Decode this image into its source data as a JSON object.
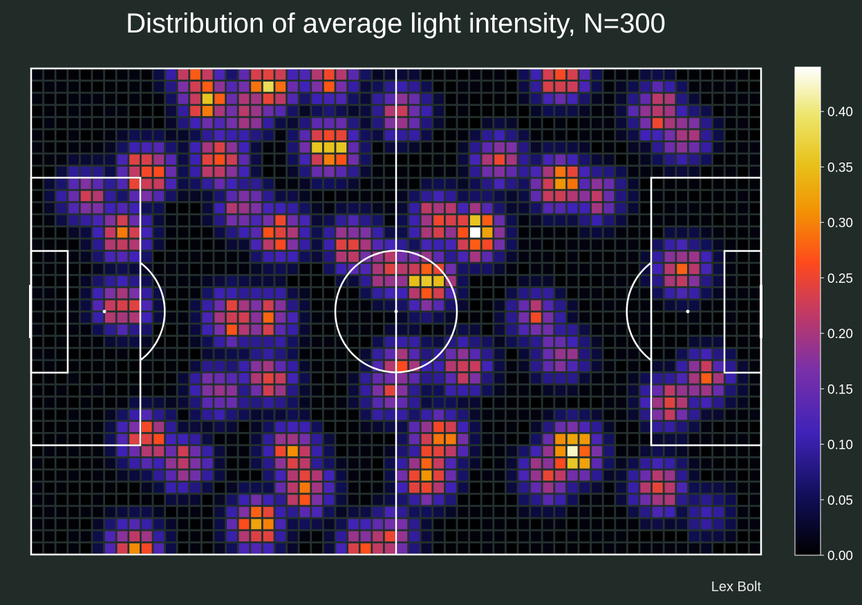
{
  "chart_data": {
    "type": "heatmap",
    "title": "Distribution of average light intensity, N=300",
    "credit": "Lex Bolt",
    "grid": {
      "columns": 60,
      "rows": 40
    },
    "colorbar": {
      "colormap": "gnuplot2",
      "vmin": 0.0,
      "vmax": 0.44,
      "ticks": [
        "0.00",
        "0.05",
        "0.10",
        "0.15",
        "0.20",
        "0.25",
        "0.30",
        "0.35",
        "0.40"
      ]
    },
    "hotspots": [
      {
        "col": 13,
        "row": 0,
        "v": 0.28
      },
      {
        "col": 14,
        "row": 2,
        "v": 0.34
      },
      {
        "col": 17,
        "row": 3,
        "v": 0.26
      },
      {
        "col": 19,
        "row": 1,
        "v": 0.36
      },
      {
        "col": 24,
        "row": 0,
        "v": 0.32
      },
      {
        "col": 24,
        "row": 6,
        "v": 0.4
      },
      {
        "col": 30,
        "row": 3,
        "v": 0.25
      },
      {
        "col": 43,
        "row": 0,
        "v": 0.32
      },
      {
        "col": 43,
        "row": 9,
        "v": 0.36
      },
      {
        "col": 46,
        "row": 10,
        "v": 0.22
      },
      {
        "col": 51,
        "row": 3,
        "v": 0.28
      },
      {
        "col": 53,
        "row": 5,
        "v": 0.25
      },
      {
        "col": 9,
        "row": 8,
        "v": 0.34
      },
      {
        "col": 4,
        "row": 10,
        "v": 0.24
      },
      {
        "col": 7,
        "row": 13,
        "v": 0.3
      },
      {
        "col": 15,
        "row": 7,
        "v": 0.3
      },
      {
        "col": 17,
        "row": 11,
        "v": 0.24
      },
      {
        "col": 20,
        "row": 13,
        "v": 0.3
      },
      {
        "col": 26,
        "row": 14,
        "v": 0.28
      },
      {
        "col": 33,
        "row": 12,
        "v": 0.3
      },
      {
        "col": 36,
        "row": 13,
        "v": 0.42
      },
      {
        "col": 32,
        "row": 17,
        "v": 0.4
      },
      {
        "col": 29,
        "row": 16,
        "v": 0.28
      },
      {
        "col": 38,
        "row": 7,
        "v": 0.24
      },
      {
        "col": 7,
        "row": 19,
        "v": 0.3
      },
      {
        "col": 16,
        "row": 20,
        "v": 0.3
      },
      {
        "col": 19,
        "row": 20,
        "v": 0.26
      },
      {
        "col": 41,
        "row": 20,
        "v": 0.24
      },
      {
        "col": 53,
        "row": 16,
        "v": 0.28
      },
      {
        "col": 43,
        "row": 23,
        "v": 0.22
      },
      {
        "col": 35,
        "row": 24,
        "v": 0.26
      },
      {
        "col": 30,
        "row": 24,
        "v": 0.26
      },
      {
        "col": 55,
        "row": 25,
        "v": 0.25
      },
      {
        "col": 52,
        "row": 27,
        "v": 0.26
      },
      {
        "col": 19,
        "row": 25,
        "v": 0.26
      },
      {
        "col": 15,
        "row": 26,
        "v": 0.24
      },
      {
        "col": 29,
        "row": 26,
        "v": 0.25
      },
      {
        "col": 9,
        "row": 30,
        "v": 0.3
      },
      {
        "col": 12,
        "row": 32,
        "v": 0.26
      },
      {
        "col": 21,
        "row": 31,
        "v": 0.3
      },
      {
        "col": 33,
        "row": 30,
        "v": 0.35
      },
      {
        "col": 32,
        "row": 33,
        "v": 0.34
      },
      {
        "col": 44,
        "row": 31,
        "v": 0.44
      },
      {
        "col": 42,
        "row": 33,
        "v": 0.28
      },
      {
        "col": 22,
        "row": 34,
        "v": 0.3
      },
      {
        "col": 18,
        "row": 37,
        "v": 0.34
      },
      {
        "col": 8,
        "row": 39,
        "v": 0.32
      },
      {
        "col": 27,
        "row": 39,
        "v": 0.28
      },
      {
        "col": 51,
        "row": 34,
        "v": 0.28
      },
      {
        "col": 29,
        "row": 38,
        "v": 0.26
      },
      {
        "col": 55,
        "row": 36,
        "v": 0.12
      }
    ]
  }
}
